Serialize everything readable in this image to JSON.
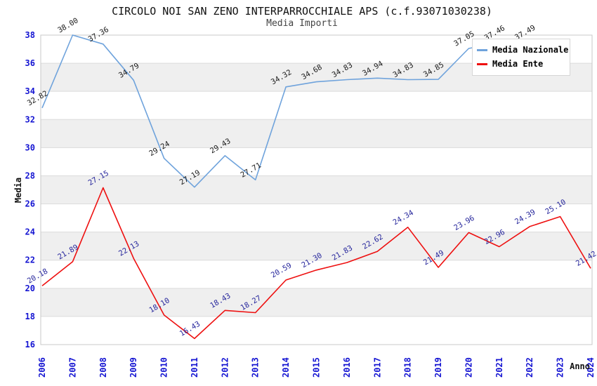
{
  "header": {
    "title": "CIRCOLO NOI SAN ZENO INTERPARROCCHIALE APS (c.f.93071030238)",
    "subtitle": "Media Importi"
  },
  "chart_data": {
    "type": "line",
    "title": "CIRCOLO NOI SAN ZENO INTERPARROCCHIALE APS (c.f.93071030238)",
    "subtitle": "Media Importi",
    "xlabel": "Anno",
    "ylabel": "Media",
    "x": [
      2006,
      2007,
      2008,
      2009,
      2010,
      2011,
      2012,
      2013,
      2014,
      2015,
      2016,
      2017,
      2018,
      2019,
      2020,
      2021,
      2022,
      2023,
      2024
    ],
    "ylim": [
      16,
      38
    ],
    "ytick_step": 2,
    "yticks": [
      16,
      18,
      20,
      22,
      24,
      26,
      28,
      30,
      32,
      34,
      36,
      38
    ],
    "grid": true,
    "band_shading": true,
    "legend_position": "top-right",
    "series": [
      {
        "name": "Media Nazionale",
        "color": "#6fa3dc",
        "label_color": "#1a1a1a",
        "values": [
          32.82,
          38.0,
          37.36,
          34.79,
          29.24,
          27.19,
          29.43,
          27.71,
          34.32,
          34.68,
          34.83,
          34.94,
          34.83,
          34.85,
          37.05,
          37.46,
          37.49,
          null,
          null
        ]
      },
      {
        "name": "Media Ente",
        "color": "#ee1010",
        "label_color": "#26269c",
        "values": [
          20.18,
          21.89,
          27.15,
          22.13,
          18.1,
          16.43,
          18.43,
          18.27,
          20.59,
          21.3,
          21.83,
          22.62,
          24.34,
          21.49,
          23.96,
          22.96,
          24.39,
          25.1,
          21.42
        ]
      }
    ]
  },
  "colors": {
    "tick_label": "#1414d2",
    "axis_title": "#111111",
    "gridline": "#dcdcdc",
    "band_gray": "#efefef",
    "plot_border": "#c9c9c9",
    "title": "#111111",
    "subtitle": "#444444"
  }
}
